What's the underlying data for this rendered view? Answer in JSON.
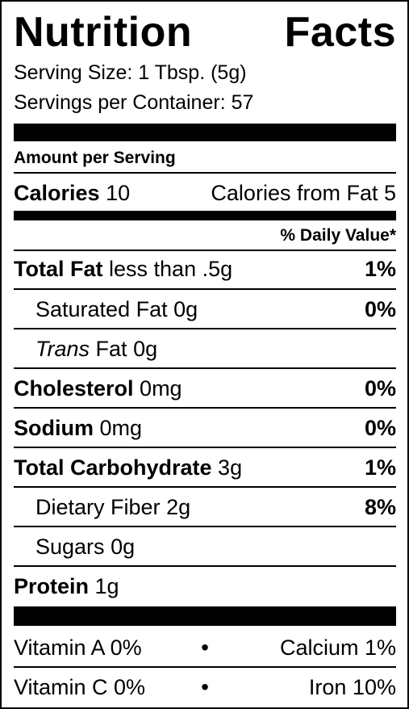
{
  "title": {
    "word1": "Nutrition",
    "word2": "Facts"
  },
  "serving": {
    "size": "Serving Size: 1 Tbsp. (5g)",
    "per_container": "Servings per Container: 57"
  },
  "amount_header": "Amount per Serving",
  "calories": {
    "label": "Calories",
    "value": "10",
    "from_fat": "Calories from Fat 5"
  },
  "dv_header": "% Daily Value*",
  "nutrients": [
    {
      "name": "Total Fat",
      "amount": "less than .5g",
      "dv": "1%"
    },
    {
      "name": "Saturated Fat",
      "amount": "0g",
      "dv": "0%"
    },
    {
      "name_italic": "Trans",
      "name": "Fat",
      "amount": "0g",
      "dv": ""
    },
    {
      "name": "Cholesterol",
      "amount": "0mg",
      "dv": "0%"
    },
    {
      "name": "Sodium",
      "amount": "0mg",
      "dv": "0%"
    },
    {
      "name": "Total Carbohydrate",
      "amount": "3g",
      "dv": "1%"
    },
    {
      "name": "Dietary Fiber",
      "amount": "2g",
      "dv": "8%"
    },
    {
      "name": "Sugars",
      "amount": "0g",
      "dv": ""
    },
    {
      "name": "Protein",
      "amount": "1g",
      "dv": ""
    }
  ],
  "vitamins": [
    {
      "left": "Vitamin A 0%",
      "bullet": "•",
      "right": "Calcium 1%"
    },
    {
      "left": "Vitamin C 0%",
      "bullet": "•",
      "right": "Iron 10%"
    }
  ]
}
